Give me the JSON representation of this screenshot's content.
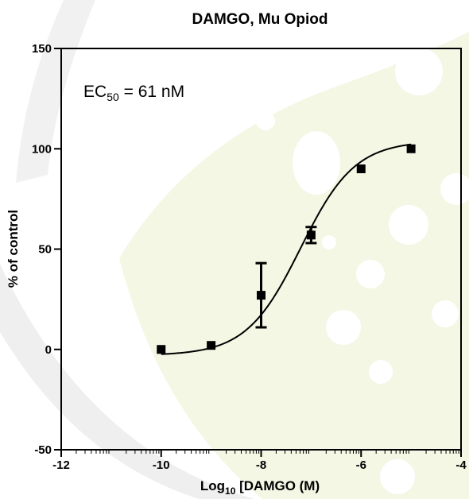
{
  "chart_data": {
    "type": "scatter",
    "title": "DAMGO, Mu Opiod",
    "xlabel_prefix": "Log",
    "xlabel_sub": "10",
    "xlabel_suffix": " [DAMGO (M)",
    "ylabel": "% of control",
    "annotation_prefix": "EC",
    "annotation_sub": "50",
    "annotation_suffix": " = 61 nM",
    "xlim": [
      -12,
      -4
    ],
    "ylim": [
      -50,
      150
    ],
    "x_ticks": [
      -12,
      -10,
      -8,
      -6,
      -4
    ],
    "y_ticks": [
      -50,
      0,
      50,
      100,
      150
    ],
    "x_tick_labels": [
      "-12",
      "-10",
      "-8",
      "-6",
      "-4"
    ],
    "y_tick_labels": [
      "-50",
      "0",
      "50",
      "100",
      "150"
    ],
    "points": [
      {
        "x": -10,
        "y": 0,
        "err": 0
      },
      {
        "x": -9,
        "y": 2,
        "err": 0
      },
      {
        "x": -8,
        "y": 27,
        "err": 16
      },
      {
        "x": -7,
        "y": 57,
        "err": 4
      },
      {
        "x": -6,
        "y": 90,
        "err": 0
      },
      {
        "x": -5,
        "y": 100,
        "err": 0
      }
    ],
    "fit": {
      "bottom": -3,
      "top": 104,
      "logEC50": -7.21,
      "hill": 0.8
    },
    "grid": false,
    "legend": "none",
    "colors": {
      "marker": "#000000",
      "line": "#000000",
      "background_accent": "#f3f7e2",
      "swoosh": "#eeeeee"
    }
  }
}
